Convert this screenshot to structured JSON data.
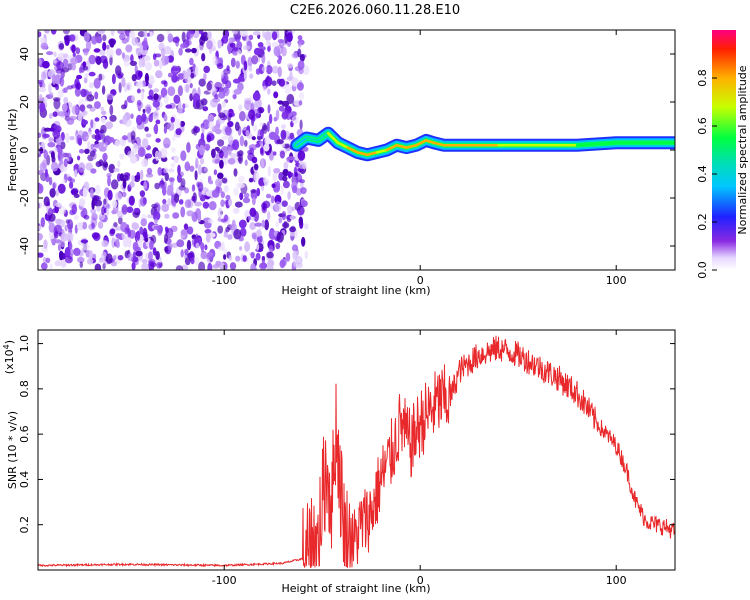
{
  "title": "C2E6.2026.060.11.28.E10",
  "chart_data": [
    {
      "type": "heatmap",
      "name": "spectrogram",
      "xlabel": "Height of straight line (km)",
      "ylabel": "Frequency (Hz)",
      "xlim": [
        -195,
        130
      ],
      "ylim": [
        -50,
        50
      ],
      "xticks": [
        -100,
        0,
        100
      ],
      "yticks": [
        -40,
        -20,
        0,
        20,
        40
      ],
      "noise_region_x": [
        -195,
        -58
      ],
      "signal_track": {
        "x": [
          -63,
          -58,
          -52,
          -47,
          -42,
          -37,
          -32,
          -27,
          -22,
          -17,
          -12,
          -7,
          -2,
          3,
          7,
          12,
          20,
          40,
          60,
          80,
          100,
          115,
          130
        ],
        "freq_hz": [
          2,
          5,
          4,
          7,
          3,
          1,
          -1,
          -2,
          -1,
          0,
          2,
          1,
          2,
          4,
          3,
          2,
          2,
          2,
          2,
          2,
          3,
          3,
          3
        ],
        "amplitude": [
          0.4,
          0.5,
          0.5,
          0.7,
          0.75,
          0.8,
          0.8,
          0.8,
          0.75,
          0.8,
          0.85,
          0.85,
          0.9,
          0.8,
          0.85,
          0.9,
          0.9,
          0.75,
          0.75,
          0.65,
          0.55,
          0.6,
          0.55
        ]
      },
      "colorbar": {
        "label": "Normalized spectral amplitude",
        "range": [
          0,
          1
        ],
        "ticks": [
          "0.0",
          "0.2",
          "0.4",
          "0.6",
          "0.8"
        ]
      }
    },
    {
      "type": "line",
      "name": "snr",
      "xlabel": "Height of straight line (km)",
      "ylabel": "SNR (10 * v/v)",
      "multiplier_label": "(x10",
      "multiplier_exp": "4",
      "xlim": [
        -195,
        130
      ],
      "ylim": [
        0,
        1.06
      ],
      "xticks": [
        -100,
        0,
        100
      ],
      "yticks": [
        "0.2",
        "0.4",
        "0.6",
        "0.8",
        "1.0"
      ],
      "color": "#e8282a",
      "series": [
        {
          "name": "SNR",
          "x": [
            -195,
            -150,
            -100,
            -70,
            -60,
            -52,
            -48,
            -45,
            -43,
            -40,
            -38,
            -35,
            -30,
            -25,
            -20,
            -15,
            -10,
            -5,
            0,
            5,
            10,
            15,
            20,
            30,
            40,
            50,
            60,
            70,
            80,
            85,
            90,
            95,
            100,
            105,
            110,
            115,
            120,
            125,
            130
          ],
          "y": [
            0.02,
            0.025,
            0.02,
            0.03,
            0.05,
            0.15,
            0.45,
            0.3,
            0.65,
            0.3,
            0.15,
            0.1,
            0.2,
            0.25,
            0.4,
            0.5,
            0.65,
            0.55,
            0.65,
            0.7,
            0.75,
            0.75,
            0.88,
            0.95,
            0.98,
            0.95,
            0.9,
            0.85,
            0.78,
            0.72,
            0.65,
            0.6,
            0.55,
            0.45,
            0.3,
            0.22,
            0.2,
            0.19,
            0.17
          ]
        }
      ]
    }
  ]
}
